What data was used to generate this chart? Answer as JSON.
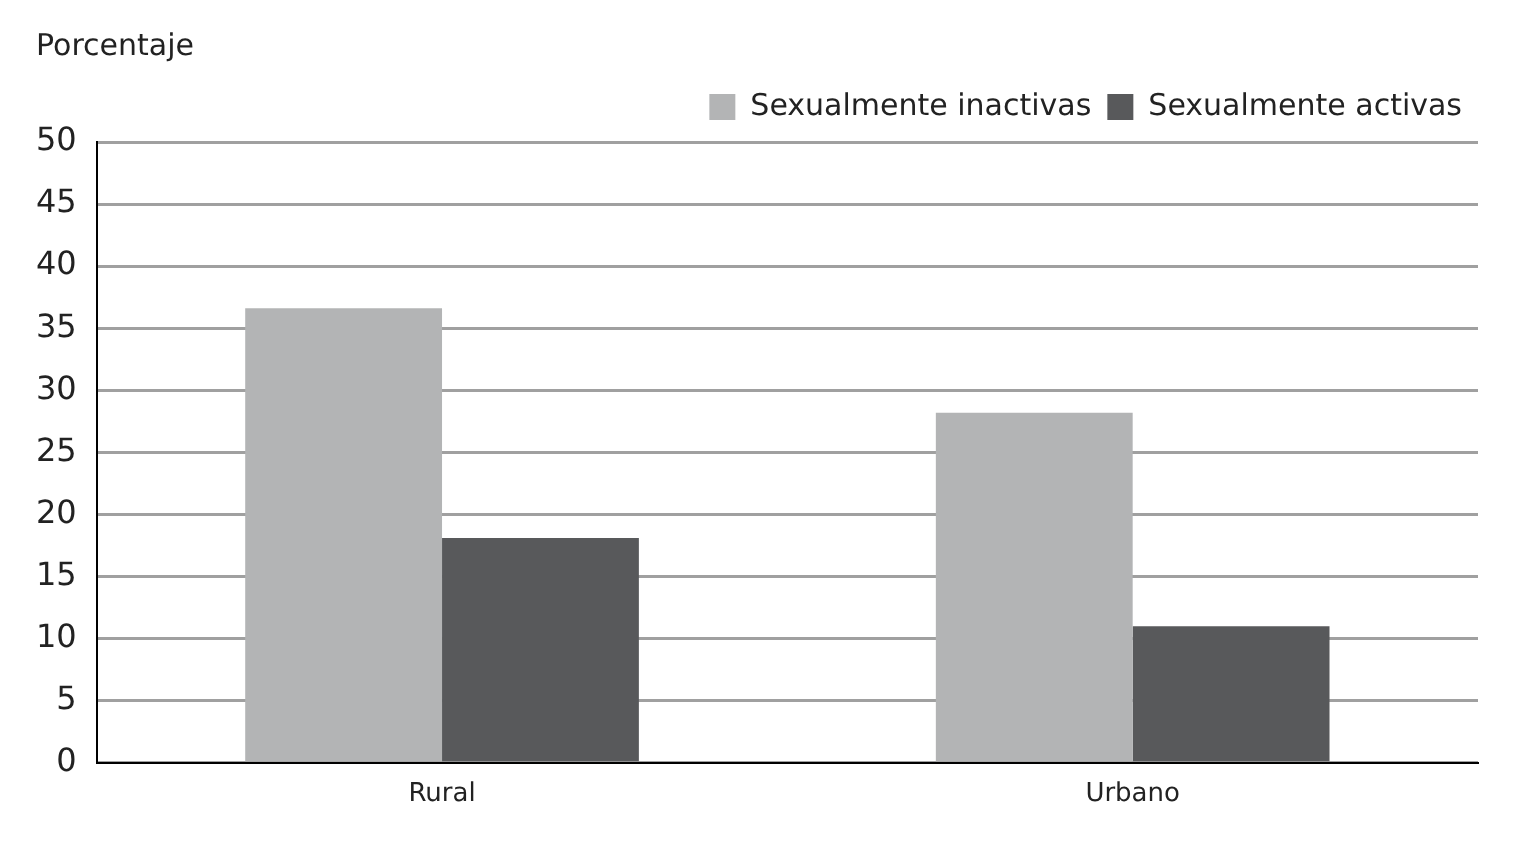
{
  "chart_data": {
    "type": "bar",
    "ylabel": "Porcentaje",
    "categories": [
      "Rural",
      "Urbano"
    ],
    "series": [
      {
        "name": "Sexualmente inactivas",
        "color": "#b3b4b5",
        "values": [
          36.6,
          28.2
        ]
      },
      {
        "name": "Sexualmente activas",
        "color": "#58595b",
        "values": [
          18.1,
          11.0
        ]
      }
    ],
    "ylim": [
      0,
      50
    ],
    "yticks": [
      0,
      5,
      10,
      15,
      20,
      25,
      30,
      35,
      40,
      45,
      50
    ],
    "grid": "y",
    "legend": "top right"
  }
}
